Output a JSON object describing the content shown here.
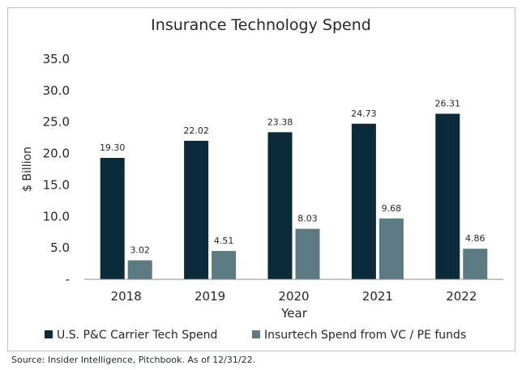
{
  "chart_data": {
    "type": "bar",
    "title": "Insurance Technology Spend",
    "xlabel": "Year",
    "ylabel": "$ Billion",
    "categories": [
      "2018",
      "2019",
      "2020",
      "2021",
      "2022"
    ],
    "ylim": [
      0,
      35
    ],
    "yticks": [
      0,
      5,
      10,
      15,
      20,
      25,
      30,
      35
    ],
    "ytick_labels": [
      "-",
      "5.0",
      "10.0",
      "15.0",
      "20.0",
      "25.0",
      "30.0",
      "35.0"
    ],
    "grid": false,
    "legend_position": "bottom",
    "series": [
      {
        "name": "U.S. P&C Carrier Tech Spend",
        "color": "#0b2a3a",
        "values": [
          19.3,
          22.02,
          23.38,
          24.73,
          26.31
        ],
        "labels": [
          "19.30",
          "22.02",
          "23.38",
          "24.73",
          "26.31"
        ]
      },
      {
        "name": "Insurtech Spend from VC / PE funds",
        "color": "#5b7a84",
        "values": [
          3.02,
          4.51,
          8.03,
          9.68,
          4.86
        ],
        "labels": [
          "3.02",
          "4.51",
          "8.03",
          "9.68",
          "4.86"
        ]
      }
    ]
  },
  "footer": {
    "source": "Source: Insider Intelligence, Pitchbook. As of 12/31/22."
  }
}
